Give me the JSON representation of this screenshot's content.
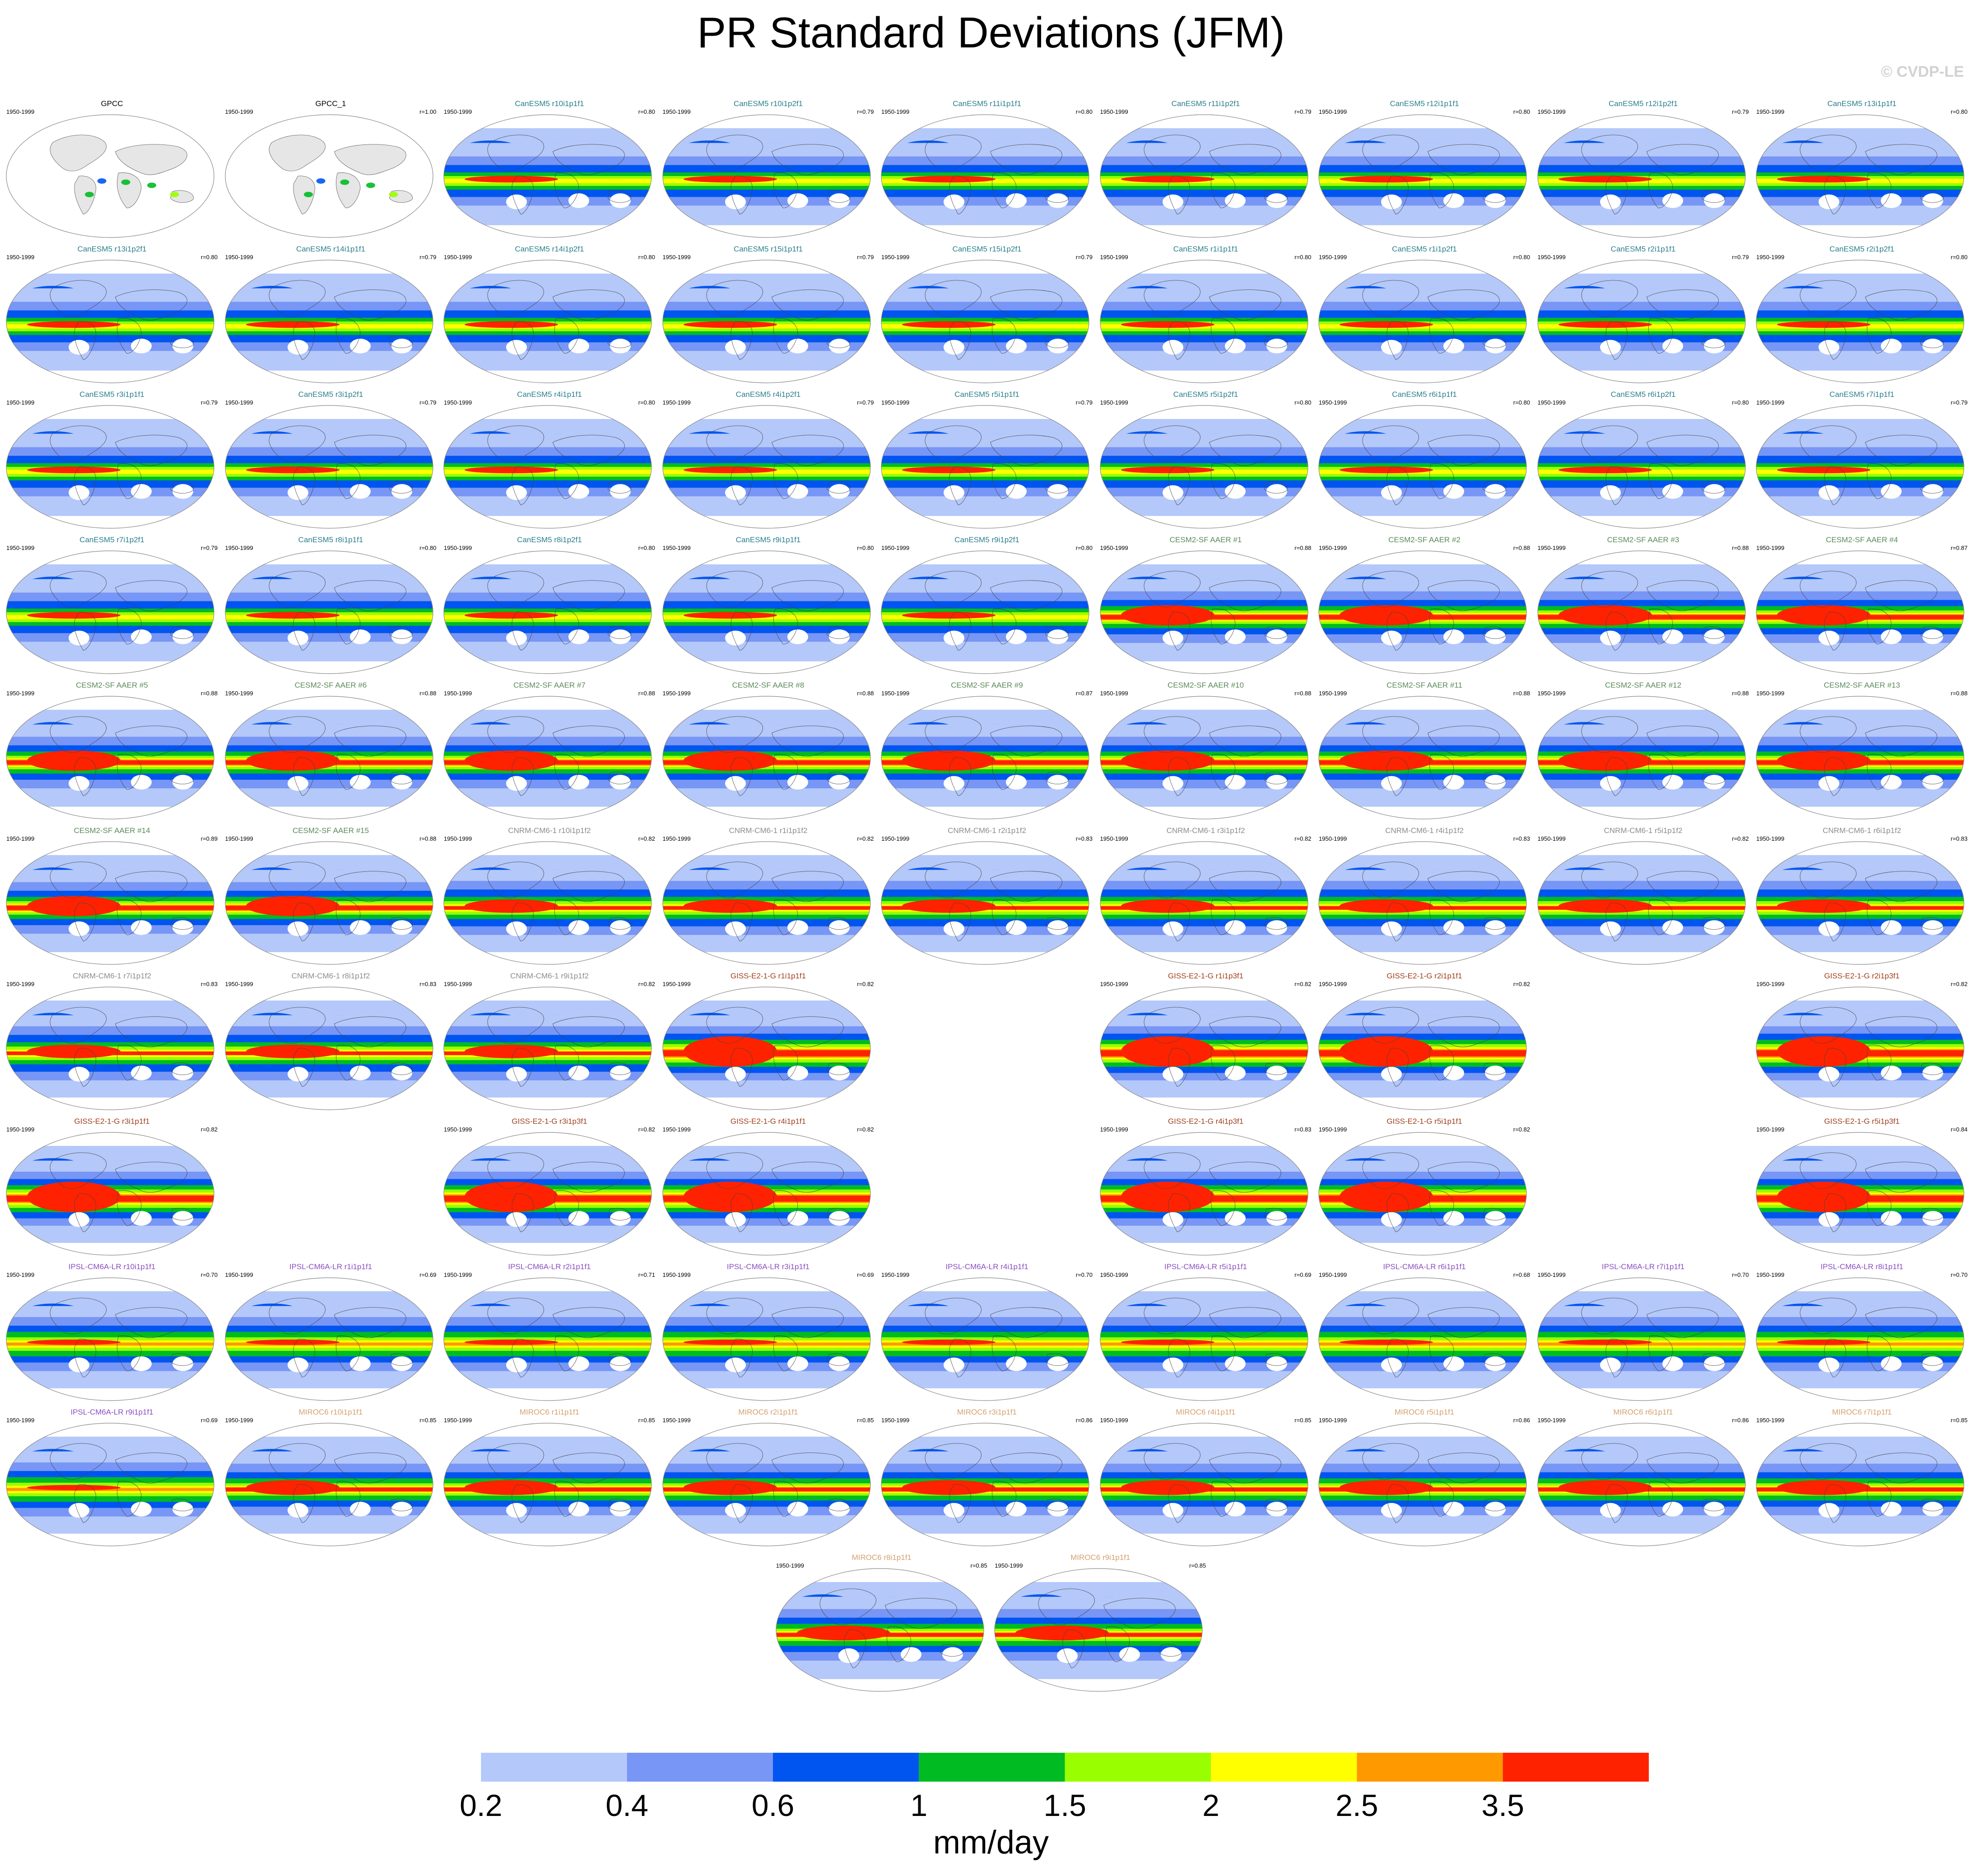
{
  "title": "PR Standard Deviations (JFM)",
  "credit": "© CVDP-LE",
  "colors": {
    "gpcc": "#000000",
    "canesm5": "#2a7f8c",
    "cesm2": "#5a8a5a",
    "cnrm": "#8c8c8c",
    "giss": "#a0401e",
    "ipsl": "#8a4fc0",
    "miroc6": "#d4a070",
    "land": "#e6e6e6"
  },
  "chart_data": {
    "type": "heatmap",
    "title": "PR Standard Deviations (JFM)",
    "colorbar": {
      "units": "mm/day",
      "tick_labels": [
        "0.2",
        "0.4",
        "0.6",
        "1",
        "1.5",
        "2",
        "2.5",
        "3.5"
      ],
      "colors": [
        "#ffffff",
        "#b4c8fa",
        "#7896f5",
        "#0055f0",
        "#00bb22",
        "#99ff00",
        "#ffff00",
        "#ff9900",
        "#ff2200"
      ]
    },
    "panels": [
      {
        "name": "GPCC",
        "years": "1950-1999",
        "r": "",
        "group": "gpcc",
        "style": "obs"
      },
      {
        "name": "GPCC_1",
        "years": "1950-1999",
        "r": "r=1.00",
        "group": "gpcc",
        "style": "obs"
      },
      {
        "name": "CanESM5 r10i1p1f1",
        "years": "1950-1999",
        "r": "r=0.80",
        "group": "canesm5",
        "style": "can"
      },
      {
        "name": "CanESM5 r10i1p2f1",
        "years": "1950-1999",
        "r": "r=0.79",
        "group": "canesm5",
        "style": "can"
      },
      {
        "name": "CanESM5 r11i1p1f1",
        "years": "1950-1999",
        "r": "r=0.80",
        "group": "canesm5",
        "style": "can"
      },
      {
        "name": "CanESM5 r11i1p2f1",
        "years": "1950-1999",
        "r": "r=0.79",
        "group": "canesm5",
        "style": "can"
      },
      {
        "name": "CanESM5 r12i1p1f1",
        "years": "1950-1999",
        "r": "r=0.80",
        "group": "canesm5",
        "style": "can"
      },
      {
        "name": "CanESM5 r12i1p2f1",
        "years": "1950-1999",
        "r": "r=0.79",
        "group": "canesm5",
        "style": "can"
      },
      {
        "name": "CanESM5 r13i1p1f1",
        "years": "1950-1999",
        "r": "r=0.80",
        "group": "canesm5",
        "style": "can"
      },
      {
        "name": "CanESM5 r13i1p2f1",
        "years": "1950-1999",
        "r": "r=0.80",
        "group": "canesm5",
        "style": "can"
      },
      {
        "name": "CanESM5 r14i1p1f1",
        "years": "1950-1999",
        "r": "r=0.79",
        "group": "canesm5",
        "style": "can"
      },
      {
        "name": "CanESM5 r14i1p2f1",
        "years": "1950-1999",
        "r": "r=0.80",
        "group": "canesm5",
        "style": "can"
      },
      {
        "name": "CanESM5 r15i1p1f1",
        "years": "1950-1999",
        "r": "r=0.79",
        "group": "canesm5",
        "style": "can"
      },
      {
        "name": "CanESM5 r15i1p2f1",
        "years": "1950-1999",
        "r": "r=0.79",
        "group": "canesm5",
        "style": "can"
      },
      {
        "name": "CanESM5 r1i1p1f1",
        "years": "1950-1999",
        "r": "r=0.80",
        "group": "canesm5",
        "style": "can"
      },
      {
        "name": "CanESM5 r1i1p2f1",
        "years": "1950-1999",
        "r": "r=0.80",
        "group": "canesm5",
        "style": "can"
      },
      {
        "name": "CanESM5 r2i1p1f1",
        "years": "1950-1999",
        "r": "r=0.79",
        "group": "canesm5",
        "style": "can"
      },
      {
        "name": "CanESM5 r2i1p2f1",
        "years": "1950-1999",
        "r": "r=0.80",
        "group": "canesm5",
        "style": "can"
      },
      {
        "name": "CanESM5 r3i1p1f1",
        "years": "1950-1999",
        "r": "r=0.79",
        "group": "canesm5",
        "style": "can"
      },
      {
        "name": "CanESM5 r3i1p2f1",
        "years": "1950-1999",
        "r": "r=0.79",
        "group": "canesm5",
        "style": "can"
      },
      {
        "name": "CanESM5 r4i1p1f1",
        "years": "1950-1999",
        "r": "r=0.80",
        "group": "canesm5",
        "style": "can"
      },
      {
        "name": "CanESM5 r4i1p2f1",
        "years": "1950-1999",
        "r": "r=0.79",
        "group": "canesm5",
        "style": "can"
      },
      {
        "name": "CanESM5 r5i1p1f1",
        "years": "1950-1999",
        "r": "r=0.79",
        "group": "canesm5",
        "style": "can"
      },
      {
        "name": "CanESM5 r5i1p2f1",
        "years": "1950-1999",
        "r": "r=0.80",
        "group": "canesm5",
        "style": "can"
      },
      {
        "name": "CanESM5 r6i1p1f1",
        "years": "1950-1999",
        "r": "r=0.80",
        "group": "canesm5",
        "style": "can"
      },
      {
        "name": "CanESM5 r6i1p2f1",
        "years": "1950-1999",
        "r": "r=0.80",
        "group": "canesm5",
        "style": "can"
      },
      {
        "name": "CanESM5 r7i1p1f1",
        "years": "1950-1999",
        "r": "r=0.79",
        "group": "canesm5",
        "style": "can"
      },
      {
        "name": "CanESM5 r7i1p2f1",
        "years": "1950-1999",
        "r": "r=0.79",
        "group": "canesm5",
        "style": "can"
      },
      {
        "name": "CanESM5 r8i1p1f1",
        "years": "1950-1999",
        "r": "r=0.80",
        "group": "canesm5",
        "style": "can"
      },
      {
        "name": "CanESM5 r8i1p2f1",
        "years": "1950-1999",
        "r": "r=0.80",
        "group": "canesm5",
        "style": "can"
      },
      {
        "name": "CanESM5 r9i1p1f1",
        "years": "1950-1999",
        "r": "r=0.80",
        "group": "canesm5",
        "style": "can"
      },
      {
        "name": "CanESM5 r9i1p2f1",
        "years": "1950-1999",
        "r": "r=0.80",
        "group": "canesm5",
        "style": "can"
      },
      {
        "name": "CESM2-SF AAER #1",
        "years": "1950-1999",
        "r": "r=0.88",
        "group": "cesm2",
        "style": "cesm"
      },
      {
        "name": "CESM2-SF AAER #2",
        "years": "1950-1999",
        "r": "r=0.88",
        "group": "cesm2",
        "style": "cesm"
      },
      {
        "name": "CESM2-SF AAER #3",
        "years": "1950-1999",
        "r": "r=0.88",
        "group": "cesm2",
        "style": "cesm"
      },
      {
        "name": "CESM2-SF AAER #4",
        "years": "1950-1999",
        "r": "r=0.87",
        "group": "cesm2",
        "style": "cesm"
      },
      {
        "name": "CESM2-SF AAER #5",
        "years": "1950-1999",
        "r": "r=0.88",
        "group": "cesm2",
        "style": "cesm"
      },
      {
        "name": "CESM2-SF AAER #6",
        "years": "1950-1999",
        "r": "r=0.88",
        "group": "cesm2",
        "style": "cesm"
      },
      {
        "name": "CESM2-SF AAER #7",
        "years": "1950-1999",
        "r": "r=0.88",
        "group": "cesm2",
        "style": "cesm"
      },
      {
        "name": "CESM2-SF AAER #8",
        "years": "1950-1999",
        "r": "r=0.88",
        "group": "cesm2",
        "style": "cesm"
      },
      {
        "name": "CESM2-SF AAER #9",
        "years": "1950-1999",
        "r": "r=0.87",
        "group": "cesm2",
        "style": "cesm"
      },
      {
        "name": "CESM2-SF AAER #10",
        "years": "1950-1999",
        "r": "r=0.88",
        "group": "cesm2",
        "style": "cesm"
      },
      {
        "name": "CESM2-SF AAER #11",
        "years": "1950-1999",
        "r": "r=0.88",
        "group": "cesm2",
        "style": "cesm"
      },
      {
        "name": "CESM2-SF AAER #12",
        "years": "1950-1999",
        "r": "r=0.88",
        "group": "cesm2",
        "style": "cesm"
      },
      {
        "name": "CESM2-SF AAER #13",
        "years": "1950-1999",
        "r": "r=0.88",
        "group": "cesm2",
        "style": "cesm"
      },
      {
        "name": "CESM2-SF AAER #14",
        "years": "1950-1999",
        "r": "r=0.89",
        "group": "cesm2",
        "style": "cesm"
      },
      {
        "name": "CESM2-SF AAER #15",
        "years": "1950-1999",
        "r": "r=0.88",
        "group": "cesm2",
        "style": "cesm"
      },
      {
        "name": "CNRM-CM6-1 r10i1p1f2",
        "years": "1950-1999",
        "r": "r=0.82",
        "group": "cnrm",
        "style": "cnrm"
      },
      {
        "name": "CNRM-CM6-1 r1i1p1f2",
        "years": "1950-1999",
        "r": "r=0.82",
        "group": "cnrm",
        "style": "cnrm"
      },
      {
        "name": "CNRM-CM6-1 r2i1p1f2",
        "years": "1950-1999",
        "r": "r=0.83",
        "group": "cnrm",
        "style": "cnrm"
      },
      {
        "name": "CNRM-CM6-1 r3i1p1f2",
        "years": "1950-1999",
        "r": "r=0.82",
        "group": "cnrm",
        "style": "cnrm"
      },
      {
        "name": "CNRM-CM6-1 r4i1p1f2",
        "years": "1950-1999",
        "r": "r=0.83",
        "group": "cnrm",
        "style": "cnrm"
      },
      {
        "name": "CNRM-CM6-1 r5i1p1f2",
        "years": "1950-1999",
        "r": "r=0.82",
        "group": "cnrm",
        "style": "cnrm"
      },
      {
        "name": "CNRM-CM6-1 r6i1p1f2",
        "years": "1950-1999",
        "r": "r=0.83",
        "group": "cnrm",
        "style": "cnrm"
      },
      {
        "name": "CNRM-CM6-1 r7i1p1f2",
        "years": "1950-1999",
        "r": "r=0.83",
        "group": "cnrm",
        "style": "cnrm"
      },
      {
        "name": "CNRM-CM6-1 r8i1p1f2",
        "years": "1950-1999",
        "r": "r=0.83",
        "group": "cnrm",
        "style": "cnrm"
      },
      {
        "name": "CNRM-CM6-1 r9i1p1f2",
        "years": "1950-1999",
        "r": "r=0.82",
        "group": "cnrm",
        "style": "cnrm"
      },
      {
        "name": "GISS-E2-1-G r1i1p1f1",
        "years": "1950-1999",
        "r": "r=0.82",
        "group": "giss",
        "style": "giss"
      },
      null,
      {
        "name": "GISS-E2-1-G r1i1p3f1",
        "years": "1950-1999",
        "r": "r=0.82",
        "group": "giss",
        "style": "giss"
      },
      {
        "name": "GISS-E2-1-G r2i1p1f1",
        "years": "1950-1999",
        "r": "r=0.82",
        "group": "giss",
        "style": "giss"
      },
      null,
      {
        "name": "GISS-E2-1-G r2i1p3f1",
        "years": "1950-1999",
        "r": "r=0.82",
        "group": "giss",
        "style": "giss"
      },
      {
        "name": "GISS-E2-1-G r3i1p1f1",
        "years": "1950-1999",
        "r": "r=0.82",
        "group": "giss",
        "style": "giss"
      },
      null,
      {
        "name": "GISS-E2-1-G r3i1p3f1",
        "years": "1950-1999",
        "r": "r=0.82",
        "group": "giss",
        "style": "giss"
      },
      {
        "name": "GISS-E2-1-G r4i1p1f1",
        "years": "1950-1999",
        "r": "r=0.82",
        "group": "giss",
        "style": "giss"
      },
      null,
      {
        "name": "GISS-E2-1-G r4i1p3f1",
        "years": "1950-1999",
        "r": "r=0.83",
        "group": "giss",
        "style": "giss"
      },
      {
        "name": "GISS-E2-1-G r5i1p1f1",
        "years": "1950-1999",
        "r": "r=0.82",
        "group": "giss",
        "style": "giss"
      },
      null,
      {
        "name": "GISS-E2-1-G r5i1p3f1",
        "years": "1950-1999",
        "r": "r=0.84",
        "group": "giss",
        "style": "giss"
      },
      {
        "name": "IPSL-CM6A-LR r10i1p1f1",
        "years": "1950-1999",
        "r": "r=0.70",
        "group": "ipsl",
        "style": "ipsl"
      },
      {
        "name": "IPSL-CM6A-LR r1i1p1f1",
        "years": "1950-1999",
        "r": "r=0.69",
        "group": "ipsl",
        "style": "ipsl"
      },
      {
        "name": "IPSL-CM6A-LR r2i1p1f1",
        "years": "1950-1999",
        "r": "r=0.71",
        "group": "ipsl",
        "style": "ipsl"
      },
      {
        "name": "IPSL-CM6A-LR r3i1p1f1",
        "years": "1950-1999",
        "r": "r=0.69",
        "group": "ipsl",
        "style": "ipsl"
      },
      {
        "name": "IPSL-CM6A-LR r4i1p1f1",
        "years": "1950-1999",
        "r": "r=0.70",
        "group": "ipsl",
        "style": "ipsl"
      },
      {
        "name": "IPSL-CM6A-LR r5i1p1f1",
        "years": "1950-1999",
        "r": "r=0.69",
        "group": "ipsl",
        "style": "ipsl"
      },
      {
        "name": "IPSL-CM6A-LR r6i1p1f1",
        "years": "1950-1999",
        "r": "r=0.68",
        "group": "ipsl",
        "style": "ipsl"
      },
      {
        "name": "IPSL-CM6A-LR r7i1p1f1",
        "years": "1950-1999",
        "r": "r=0.70",
        "group": "ipsl",
        "style": "ipsl"
      },
      {
        "name": "IPSL-CM6A-LR r8i1p1f1",
        "years": "1950-1999",
        "r": "r=0.70",
        "group": "ipsl",
        "style": "ipsl"
      },
      {
        "name": "IPSL-CM6A-LR r9i1p1f1",
        "years": "1950-1999",
        "r": "r=0.69",
        "group": "ipsl",
        "style": "ipsl"
      },
      {
        "name": "MIROC6 r10i1p1f1",
        "years": "1950-1999",
        "r": "r=0.85",
        "group": "miroc6",
        "style": "miroc"
      },
      {
        "name": "MIROC6 r1i1p1f1",
        "years": "1950-1999",
        "r": "r=0.85",
        "group": "miroc6",
        "style": "miroc"
      },
      {
        "name": "MIROC6 r2i1p1f1",
        "years": "1950-1999",
        "r": "r=0.85",
        "group": "miroc6",
        "style": "miroc"
      },
      {
        "name": "MIROC6 r3i1p1f1",
        "years": "1950-1999",
        "r": "r=0.86",
        "group": "miroc6",
        "style": "miroc"
      },
      {
        "name": "MIROC6 r4i1p1f1",
        "years": "1950-1999",
        "r": "r=0.85",
        "group": "miroc6",
        "style": "miroc"
      },
      {
        "name": "MIROC6 r5i1p1f1",
        "years": "1950-1999",
        "r": "r=0.86",
        "group": "miroc6",
        "style": "miroc"
      },
      {
        "name": "MIROC6 r6i1p1f1",
        "years": "1950-1999",
        "r": "r=0.86",
        "group": "miroc6",
        "style": "miroc"
      },
      {
        "name": "MIROC6 r7i1p1f1",
        "years": "1950-1999",
        "r": "r=0.85",
        "group": "miroc6",
        "style": "miroc"
      },
      {
        "name": "MIROC6 r8i1p1f1",
        "years": "1950-1999",
        "r": "r=0.85",
        "group": "miroc6",
        "style": "miroc"
      },
      {
        "name": "MIROC6 r9i1p1f1",
        "years": "1950-1999",
        "r": "r=0.85",
        "group": "miroc6",
        "style": "miroc"
      }
    ]
  }
}
